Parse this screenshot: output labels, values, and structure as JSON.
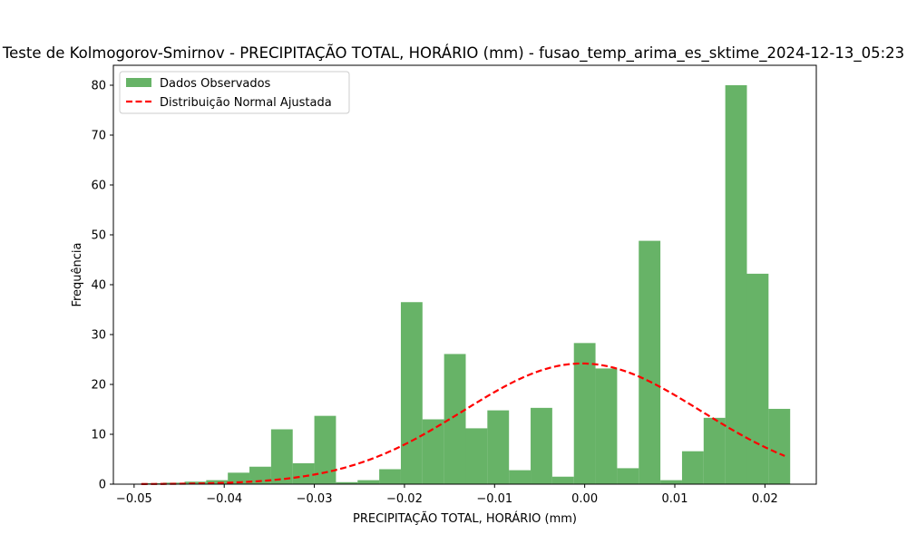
{
  "chart_data": {
    "type": "bar",
    "title": "Teste de Kolmogorov-Smirnov - PRECIPITAÇÃO TOTAL, HORÁRIO (mm) - fusao_temp_arima_es_sktime_2024-12-13_05:23",
    "xlabel": "PRECIPITAÇÃO TOTAL, HORÁRIO (mm)",
    "ylabel": "Frequência",
    "xlim": [
      -0.0523,
      0.0257
    ],
    "ylim": [
      0,
      84
    ],
    "xticks": [
      -0.05,
      -0.04,
      -0.03,
      -0.02,
      -0.01,
      0.0,
      0.01,
      0.02
    ],
    "xtick_labels": [
      "−0.05",
      "−0.04",
      "−0.03",
      "−0.02",
      "−0.01",
      "0.00",
      "0.01",
      "0.02"
    ],
    "yticks": [
      0,
      10,
      20,
      30,
      40,
      50,
      60,
      70,
      80
    ],
    "ytick_labels": [
      "0",
      "10",
      "20",
      "30",
      "40",
      "50",
      "60",
      "70",
      "80"
    ],
    "grid": false,
    "legend": {
      "placement": "top-left",
      "entries": [
        "Dados Observados",
        "Distribuição Normal Ajustada"
      ]
    },
    "histogram": {
      "name": "Dados Observados",
      "color": "#4ca64c",
      "bin_edges": [
        -0.0492,
        -0.0468,
        -0.0444,
        -0.042,
        -0.0396,
        -0.0372,
        -0.0348,
        -0.0324,
        -0.03,
        -0.0276,
        -0.0252,
        -0.0228,
        -0.0204,
        -0.018,
        -0.0156,
        -0.0132,
        -0.0108,
        -0.0084,
        -0.006,
        -0.0036,
        -0.0012,
        0.0012,
        0.0036,
        0.006,
        0.0084,
        0.0108,
        0.0132,
        0.0156,
        0.018,
        0.0204,
        0.0228
      ],
      "values": [
        0.2,
        0.3,
        0.5,
        0.8,
        2.3,
        3.5,
        11.0,
        4.2,
        13.7,
        0.4,
        0.8,
        3.0,
        36.5,
        13.0,
        26.1,
        11.2,
        14.8,
        2.8,
        15.3,
        1.5,
        28.3,
        23.2,
        3.2,
        48.8,
        0.8,
        6.6,
        13.3,
        80.0,
        42.2,
        15.1
      ]
    },
    "fit_curve": {
      "name": "Distribuição Normal Ajustada",
      "color": "#ff0000",
      "style": "dashed",
      "mean": -0.0003,
      "std": 0.0132,
      "peak": 24.2,
      "x_range": [
        -0.0492,
        0.0222
      ]
    }
  }
}
